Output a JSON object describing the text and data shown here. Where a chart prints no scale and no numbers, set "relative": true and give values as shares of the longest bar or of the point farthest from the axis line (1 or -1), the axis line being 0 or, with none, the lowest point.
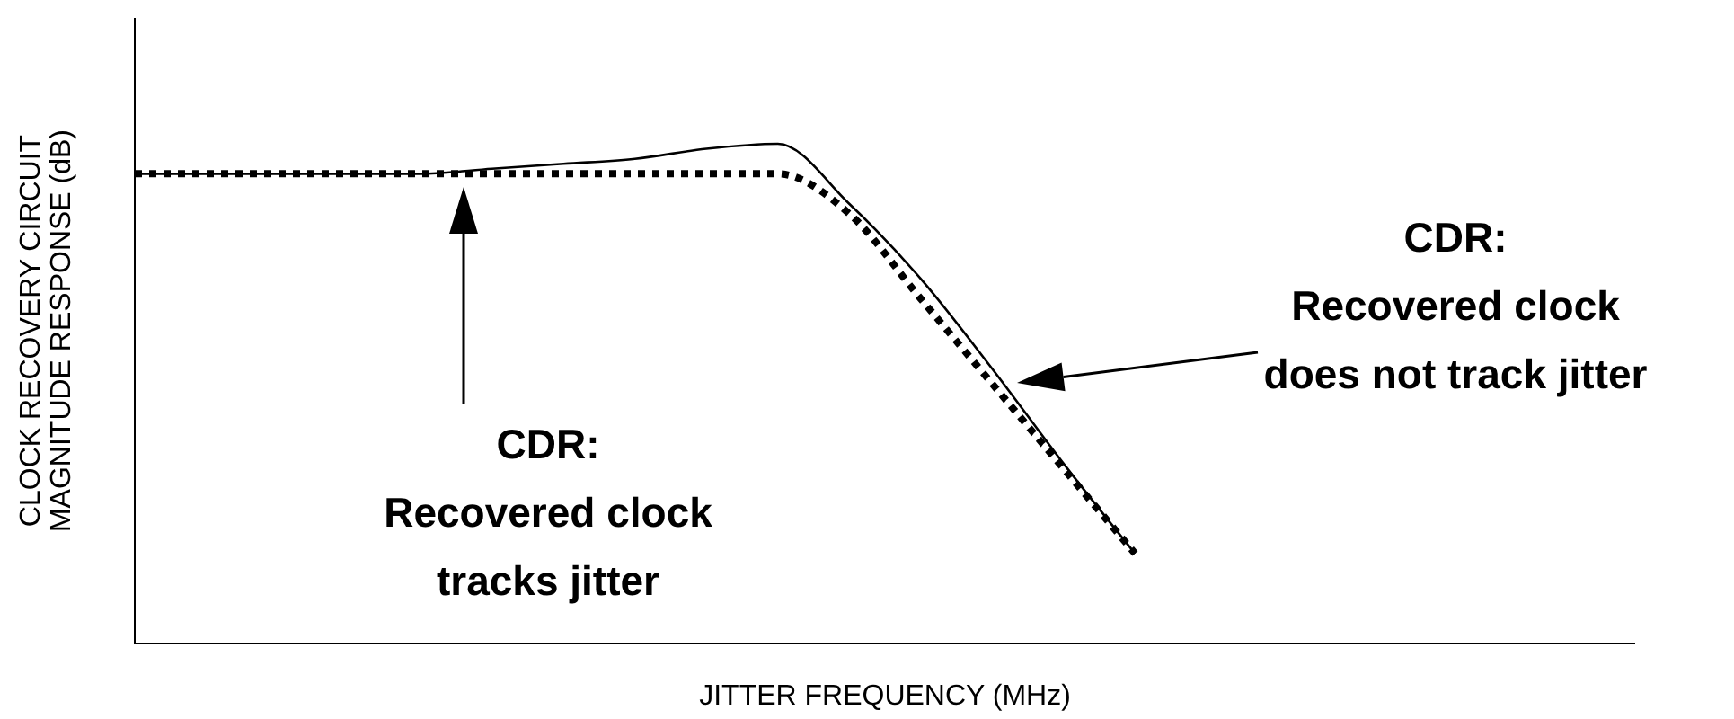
{
  "chart_data": {
    "type": "line",
    "relative": true,
    "xlabel": "JITTER FREQUENCY (MHz)",
    "ylabel": "CLOCK RECOVERY CIRCUIT\nMAGNITUDE RESPONSE (dB)",
    "categories": [
      null,
      null,
      null,
      null,
      null,
      null,
      null,
      null,
      null,
      null,
      null,
      null,
      null,
      null,
      null,
      null,
      null,
      null,
      null,
      null,
      null,
      null
    ],
    "series": [
      {
        "color": "#000000",
        "line_style": "solid",
        "values": [
          0.94,
          0.94,
          0.94,
          0.94,
          0.94,
          0.95,
          0.96,
          0.97,
          0.99,
          1,
          0.88,
          0.73,
          0.55,
          0.36,
          0.18,
          null,
          null,
          null,
          null,
          null,
          null,
          null
        ]
      },
      {
        "color": "#000000",
        "line_style": "dotted",
        "values": [
          0.94,
          0.94,
          0.94,
          0.94,
          0.94,
          0.94,
          0.94,
          0.94,
          0.94,
          0.94,
          0.86,
          0.69,
          0.52,
          0.35,
          0.18,
          null,
          null,
          null,
          null,
          null,
          null,
          null
        ]
      }
    ],
    "marker": "none",
    "annotations": [
      "CDR:\nRecovered clock\ntracks jitter",
      "CDR:\nRecovered clock\ndoes not track jitter"
    ]
  }
}
